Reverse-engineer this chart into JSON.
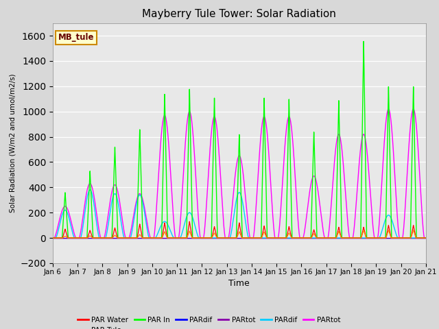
{
  "title": "Mayberry Tule Tower: Solar Radiation",
  "ylabel": "Solar Radiation (W/m2 and umol/m2/s)",
  "xlabel": "Time",
  "xlim": [
    0,
    15
  ],
  "ylim": [
    -200,
    1700
  ],
  "yticks": [
    -200,
    0,
    200,
    400,
    600,
    800,
    1000,
    1200,
    1400,
    1600
  ],
  "xtick_labels": [
    "Jan 6",
    "Jan 7",
    "Jan 8",
    "Jan 9",
    "Jan 10",
    "Jan 11",
    "Jan 12",
    "Jan 13",
    "Jan 14",
    "Jan 15",
    "Jan 16",
    "Jan 17",
    "Jan 18",
    "Jan 19",
    "Jan 20",
    "Jan 21"
  ],
  "bg_color": "#d8d8d8",
  "plot_bg_color": "#e8e8e8",
  "annotation_text": "MB_tule",
  "annotation_bg": "#ffffcc",
  "annotation_border": "#cc8800",
  "legend_entries": [
    "PAR Water",
    "PAR Tule",
    "PAR In",
    "PARdif",
    "PARtot",
    "PARdif",
    "PARtot"
  ],
  "legend_colors": [
    "#ff0000",
    "#ff8800",
    "#00ff00",
    "#0000ff",
    "#8800aa",
    "#00ccff",
    "#ff00ff"
  ],
  "series_colors": {
    "PAR_Water": "#ff0000",
    "PAR_Tule": "#ff8800",
    "PAR_In": "#00ff00",
    "PARdif_blue": "#0000ff",
    "PARtot_purple": "#8800aa",
    "PARdif_cyan": "#00ccff",
    "PARtot_magenta": "#ff00ff"
  },
  "daily_peaks": [
    {
      "day": 0.5,
      "green": 360,
      "magenta_wide": 250,
      "cyan_wide": 220,
      "red": 70,
      "orange": 15,
      "blue": 0,
      "purple": 0
    },
    {
      "day": 1.5,
      "green": 530,
      "magenta_wide": 430,
      "cyan_wide": 380,
      "red": 60,
      "orange": 18,
      "blue": 0,
      "purple": 0
    },
    {
      "day": 2.5,
      "green": 720,
      "magenta_wide": 420,
      "cyan_wide": 350,
      "red": 80,
      "orange": 22,
      "blue": 0,
      "purple": 0
    },
    {
      "day": 3.5,
      "green": 860,
      "magenta_wide": 350,
      "cyan_wide": 340,
      "red": 110,
      "orange": 28,
      "blue": 0,
      "purple": 0
    },
    {
      "day": 4.5,
      "green": 1140,
      "magenta_wide": 970,
      "cyan_wide": 130,
      "red": 120,
      "orange": 50,
      "blue": 0,
      "purple": 0
    },
    {
      "day": 5.5,
      "green": 1180,
      "magenta_wide": 1000,
      "cyan_wide": 200,
      "red": 130,
      "orange": 55,
      "blue": 0,
      "purple": 0
    },
    {
      "day": 6.5,
      "green": 1110,
      "magenta_wide": 960,
      "cyan_wide": 0,
      "red": 90,
      "orange": 40,
      "blue": 0,
      "purple": 0
    },
    {
      "day": 7.5,
      "green": 820,
      "magenta_wide": 650,
      "cyan_wide": 360,
      "red": 120,
      "orange": 50,
      "blue": 0,
      "purple": 0
    },
    {
      "day": 8.5,
      "green": 1110,
      "magenta_wide": 960,
      "cyan_wide": 0,
      "red": 95,
      "orange": 48,
      "blue": 0,
      "purple": 0
    },
    {
      "day": 9.5,
      "green": 1100,
      "magenta_wide": 960,
      "cyan_wide": 0,
      "red": 90,
      "orange": 40,
      "blue": 0,
      "purple": 0
    },
    {
      "day": 10.5,
      "green": 840,
      "magenta_wide": 490,
      "cyan_wide": 0,
      "red": 65,
      "orange": 35,
      "blue": 0,
      "purple": 0
    },
    {
      "day": 11.5,
      "green": 1090,
      "magenta_wide": 820,
      "cyan_wide": 0,
      "red": 85,
      "orange": 52,
      "blue": 0,
      "purple": 0
    },
    {
      "day": 12.5,
      "green": 1560,
      "magenta_wide": 820,
      "cyan_wide": 0,
      "red": 85,
      "orange": 60,
      "blue": 0,
      "purple": 0
    },
    {
      "day": 13.5,
      "green": 1200,
      "magenta_wide": 1020,
      "cyan_wide": 180,
      "red": 100,
      "orange": 62,
      "blue": 0,
      "purple": 0
    },
    {
      "day": 14.5,
      "green": 1200,
      "magenta_wide": 1020,
      "cyan_wide": 0,
      "red": 100,
      "orange": 62,
      "blue": 0,
      "purple": 0
    }
  ]
}
